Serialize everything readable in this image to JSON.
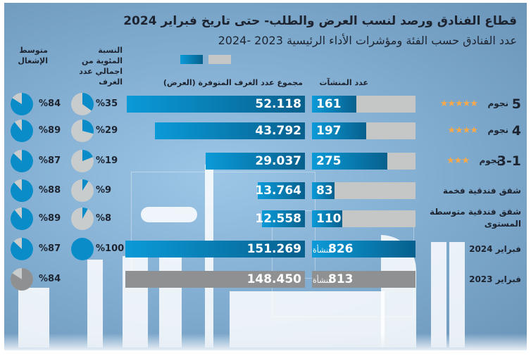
{
  "header": {
    "title": "قطاع الفنادق ورصد لنسب العرض والطلب- حتى تاريخ فبراير 2024",
    "subtitle": "عدد الفنادق حسب الفئة ومؤشرات الأداء الرئيسية  2023 -2024",
    "legend": [
      {
        "year": "2024",
        "color": "#0a8cc8"
      },
      {
        "year": "2023",
        "color": "#c4c7c6"
      }
    ]
  },
  "columns": {
    "establishments": "عدد المنشآت",
    "rooms": "مجموع عدد الغرف المتوفرة (العرض)",
    "share": "النسبة المئوية من اجمالي عدد الغرف",
    "occupancy": "متوسط الإشغال"
  },
  "unit_label": "منشأة",
  "chart_data": {
    "type": "bar",
    "title": "قطاع الفنادق ورصد لنسب العرض والطلب- حتى تاريخ فبراير 2024",
    "categories": [
      {
        "num": "5",
        "label": "نجوم",
        "stars": 5
      },
      {
        "num": "4",
        "label": "نجوم",
        "stars": 4
      },
      {
        "num": "3-1",
        "label": "نجوم",
        "stars": 3
      },
      {
        "num": "",
        "label": "شقق فندقية فخمة",
        "stars": 0
      },
      {
        "num": "",
        "label": "شقق فندقية متوسطة المستوى",
        "stars": 0
      },
      {
        "num": "",
        "label": "فبراير 2024",
        "stars": 0
      },
      {
        "num": "",
        "label": "فبراير 2023",
        "stars": 0
      }
    ],
    "series": [
      {
        "name": "عدد المنشآت",
        "values": [
          161,
          197,
          275,
          83,
          110,
          826,
          813
        ],
        "display": [
          "161",
          "197",
          "275",
          "83",
          "110",
          "826",
          "813"
        ]
      },
      {
        "name": "مجموع عدد الغرف المتوفرة (العرض)",
        "values": [
          52118,
          43792,
          29037,
          13764,
          12558,
          151269,
          148450
        ],
        "display": [
          "52.118",
          "43.792",
          "29.037",
          "13.764",
          "12.558",
          "151.269",
          "148.450"
        ]
      },
      {
        "name": "النسبة المئوية من اجمالي عدد الغرف",
        "values": [
          35,
          29,
          19,
          9,
          8,
          100,
          null
        ],
        "display": [
          "%35",
          "%29",
          "%19",
          "%9",
          "%8",
          "%100",
          ""
        ]
      },
      {
        "name": "متوسط الإشغال",
        "values": [
          84,
          89,
          87,
          88,
          89,
          87,
          84
        ],
        "display": [
          "%84",
          "%89",
          "%87",
          "%88",
          "%89",
          "%87",
          "%84"
        ]
      }
    ],
    "colors": {
      "year_2024": "#0a8cc8",
      "year_2023": "#8e9091",
      "background_bar": "#c4c7c6",
      "stars": "#f6a94a"
    }
  }
}
